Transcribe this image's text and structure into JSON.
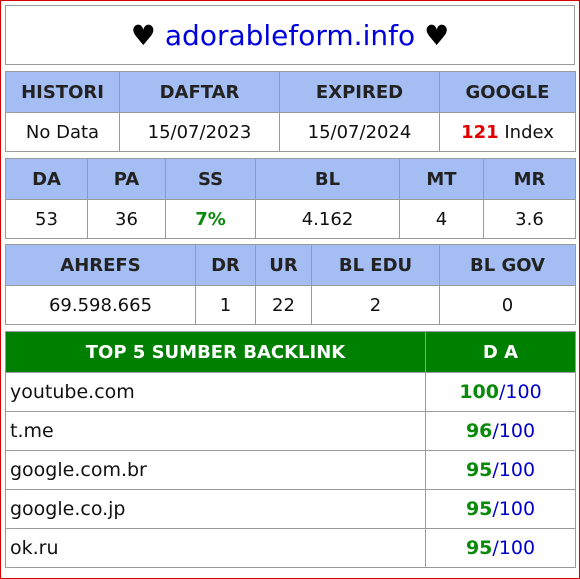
{
  "header": {
    "heart_left": "♥",
    "site": "adorableform.info",
    "heart_right": "♥"
  },
  "info": {
    "headers": [
      "HISTORI",
      "DAFTAR",
      "EXPIRED",
      "GOOGLE"
    ],
    "history": "No Data",
    "daftar": "15/07/2023",
    "expired": "15/07/2024",
    "google_count": "121",
    "google_suffix": "Index"
  },
  "metrics": {
    "headers": [
      "DA",
      "PA",
      "SS",
      "BL",
      "MT",
      "MR"
    ],
    "da": "53",
    "pa": "36",
    "ss": "7%",
    "bl": "4.162",
    "mt": "4",
    "mr": "3.6"
  },
  "links": {
    "headers": [
      "AHREFS",
      "DR",
      "UR",
      "BL EDU",
      "BL GOV"
    ],
    "ahrefs": "69.598.665",
    "dr": "1",
    "ur": "22",
    "bl_edu": "2",
    "bl_gov": "0"
  },
  "backlinks": {
    "title": "TOP 5 SUMBER BACKLINK",
    "da_header": "D A",
    "sep": "/",
    "rows": [
      {
        "domain": "youtube.com",
        "da": "100",
        "max": "100"
      },
      {
        "domain": "t.me",
        "da": "96",
        "max": "100"
      },
      {
        "domain": "google.com.br",
        "da": "95",
        "max": "100"
      },
      {
        "domain": "google.co.jp",
        "da": "95",
        "max": "100"
      },
      {
        "domain": "ok.ru",
        "da": "95",
        "max": "100"
      }
    ]
  },
  "colors": {
    "header_bg": "#a4bdf3",
    "backlink_header_bg": "#008000",
    "border_frame": "#d40000",
    "site_link": "#0000dd"
  }
}
